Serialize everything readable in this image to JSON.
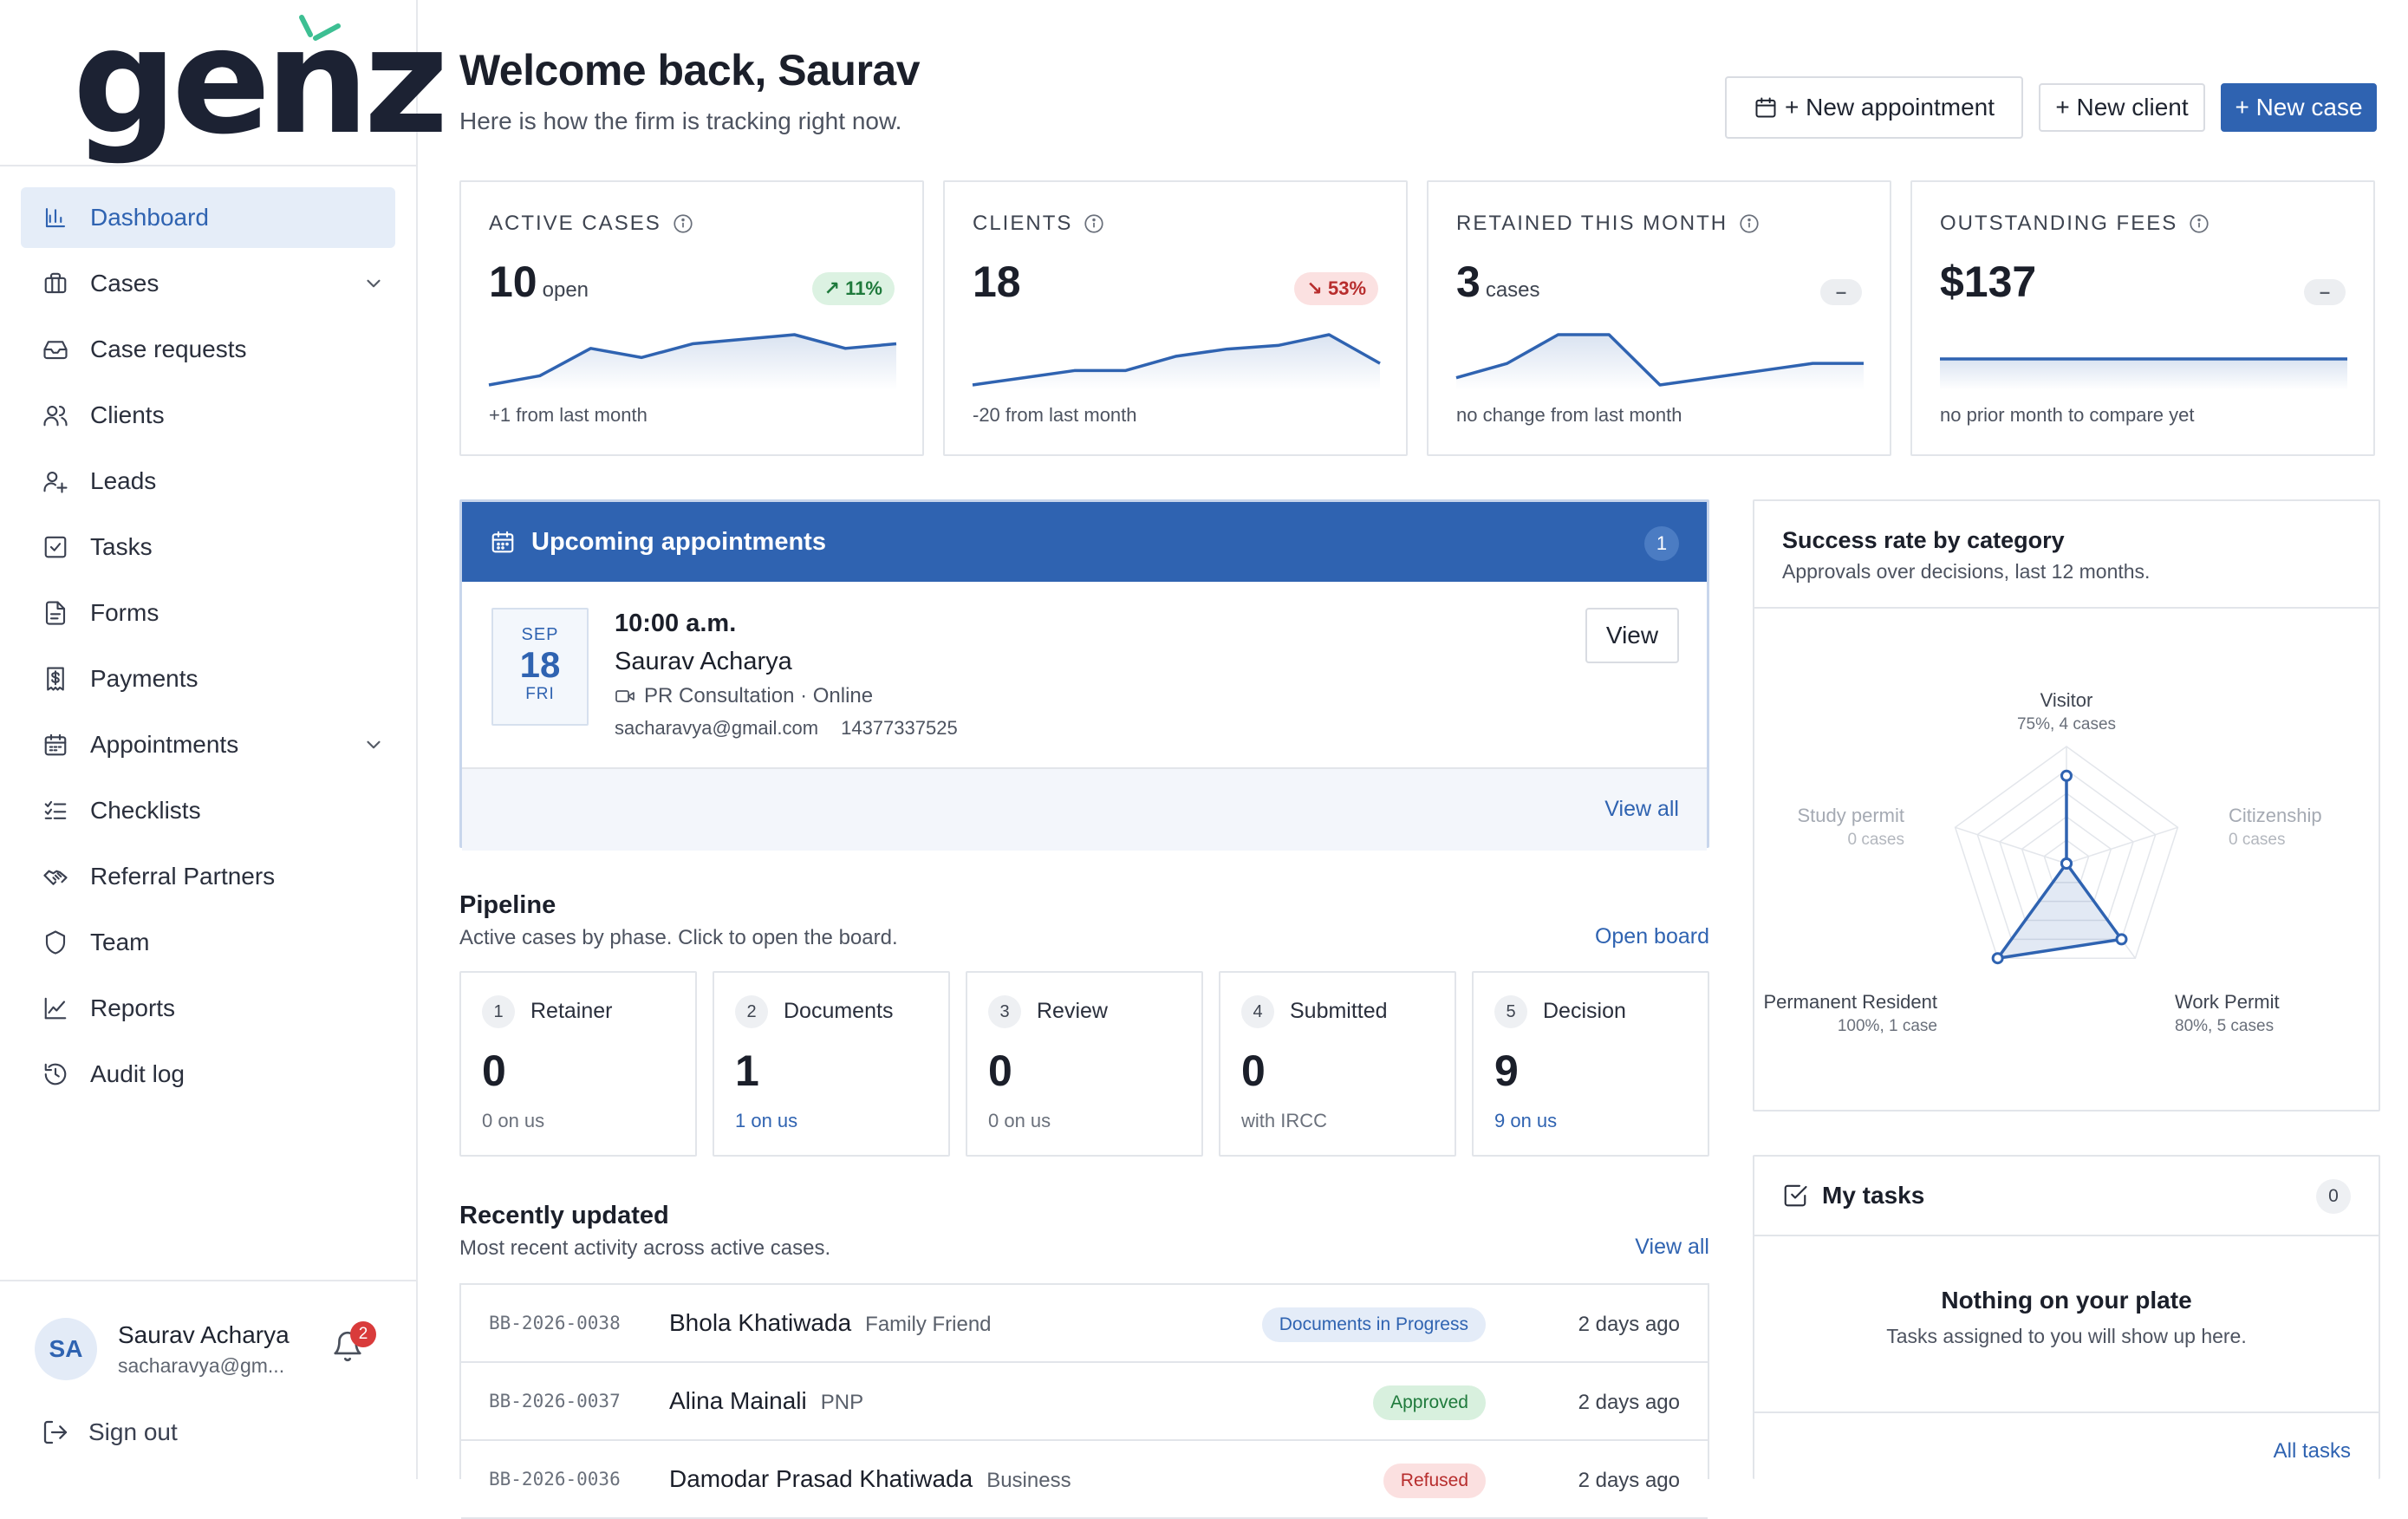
{
  "brand": {
    "logo_text": "genz",
    "accent": "#2f63b1",
    "spark_color": "#3dbf93"
  },
  "sidebar": {
    "items": [
      {
        "label": "Dashboard",
        "icon": "bar-chart-icon",
        "active": true
      },
      {
        "label": "Cases",
        "icon": "briefcase-icon",
        "has_children": true
      },
      {
        "label": "Case requests",
        "icon": "inbox-icon"
      },
      {
        "label": "Clients",
        "icon": "users-icon"
      },
      {
        "label": "Leads",
        "icon": "user-plus-icon"
      },
      {
        "label": "Tasks",
        "icon": "checkbox-icon"
      },
      {
        "label": "Forms",
        "icon": "document-icon"
      },
      {
        "label": "Payments",
        "icon": "dollar-receipt-icon"
      },
      {
        "label": "Appointments",
        "icon": "calendar-icon",
        "has_children": true
      },
      {
        "label": "Checklists",
        "icon": "checklist-icon"
      },
      {
        "label": "Referral Partners",
        "icon": "handshake-icon"
      },
      {
        "label": "Team",
        "icon": "shield-icon"
      },
      {
        "label": "Reports",
        "icon": "line-chart-icon"
      },
      {
        "label": "Audit log",
        "icon": "history-icon"
      }
    ],
    "user": {
      "initials": "SA",
      "name": "Saurav Acharya",
      "email": "sacharavya@gm...",
      "notifications": "2"
    },
    "sign_out": "Sign out"
  },
  "header": {
    "title": "Welcome back, Saurav",
    "subtitle": "Here is how the firm is tracking right now.",
    "new_appointment": "+ New appointment",
    "new_client": "+ New client",
    "new_case": "+ New case"
  },
  "stats": [
    {
      "label": "ACTIVE CASES",
      "value": "10",
      "unit": "open",
      "badge": "↗ 11%",
      "trend": "up",
      "note": "+1 from last month",
      "spark": [
        3,
        4,
        7,
        6,
        7.5,
        8,
        8.5,
        7,
        7.5
      ]
    },
    {
      "label": "CLIENTS",
      "value": "18",
      "unit": "",
      "badge": "↘ 53%",
      "trend": "down",
      "note": "-20 from last month",
      "spark": [
        1,
        2,
        3,
        3,
        5,
        6,
        6.5,
        8,
        4
      ]
    },
    {
      "label": "RETAINED THIS MONTH",
      "value": "3",
      "unit": "cases",
      "badge": "–",
      "trend": "flat",
      "note": "no change from last month",
      "spark": [
        1,
        2,
        4,
        4,
        0.5,
        1,
        1.5,
        2,
        2
      ]
    },
    {
      "label": "OUTSTANDING FEES",
      "value": "$137",
      "unit": "",
      "badge": "–",
      "trend": "flat",
      "note": "no prior month to compare yet",
      "spark": [
        1,
        1,
        1,
        1,
        1,
        1,
        1,
        1,
        1
      ]
    }
  ],
  "appointments": {
    "title": "Upcoming appointments",
    "count": "1",
    "items": [
      {
        "month": "SEP",
        "day": "18",
        "weekday": "FRI",
        "time": "10:00 a.m.",
        "name": "Saurav Acharya",
        "type": "PR Consultation · Online",
        "email": "sacharavya@gmail.com",
        "phone": "14377337525",
        "view_label": "View"
      }
    ],
    "view_all": "View all"
  },
  "pipeline": {
    "title": "Pipeline",
    "subtitle": "Active cases by phase. Click to open the board.",
    "link": "Open board",
    "phases": [
      {
        "num": "1",
        "name": "Retainer",
        "count": "0",
        "note": "0 on us",
        "highlight": false
      },
      {
        "num": "2",
        "name": "Documents",
        "count": "1",
        "note": "1 on us",
        "highlight": true
      },
      {
        "num": "3",
        "name": "Review",
        "count": "0",
        "note": "0 on us",
        "highlight": false
      },
      {
        "num": "4",
        "name": "Submitted",
        "count": "0",
        "note": "with IRCC",
        "highlight": false
      },
      {
        "num": "5",
        "name": "Decision",
        "count": "9",
        "note": "9 on us",
        "highlight": true
      }
    ]
  },
  "recent": {
    "title": "Recently updated",
    "subtitle": "Most recent activity across active cases.",
    "link": "View all",
    "rows": [
      {
        "id": "BB-2026-0038",
        "name": "Bhola Khatiwada",
        "tag": "Family Friend",
        "status": "Documents in Progress",
        "status_kind": "blue",
        "time": "2 days ago"
      },
      {
        "id": "BB-2026-0037",
        "name": "Alina Mainali",
        "tag": "PNP",
        "status": "Approved",
        "status_kind": "green",
        "time": "2 days ago"
      },
      {
        "id": "BB-2026-0036",
        "name": "Damodar Prasad Khatiwada",
        "tag": "Business",
        "status": "Refused",
        "status_kind": "red",
        "time": "2 days ago"
      }
    ]
  },
  "success_rate": {
    "title": "Success rate by category",
    "subtitle": "Approvals over decisions, last 12 months."
  },
  "chart_data": {
    "type": "radar",
    "categories": [
      {
        "name": "Visitor",
        "detail": "75%, 4 cases",
        "value": 75,
        "active": true
      },
      {
        "name": "Citizenship",
        "detail": "0 cases",
        "value": 0,
        "active": false
      },
      {
        "name": "Work Permit",
        "detail": "80%, 5 cases",
        "value": 80,
        "active": true
      },
      {
        "name": "Permanent Resident",
        "detail": "100%, 1 case",
        "value": 100,
        "active": true
      },
      {
        "name": "Study permit",
        "detail": "0 cases",
        "value": 0,
        "active": false
      }
    ],
    "range": [
      0,
      100
    ]
  },
  "tasks": {
    "title": "My tasks",
    "count": "0",
    "empty_title": "Nothing on your plate",
    "empty_sub": "Tasks assigned to you will show up here.",
    "link": "All tasks"
  }
}
